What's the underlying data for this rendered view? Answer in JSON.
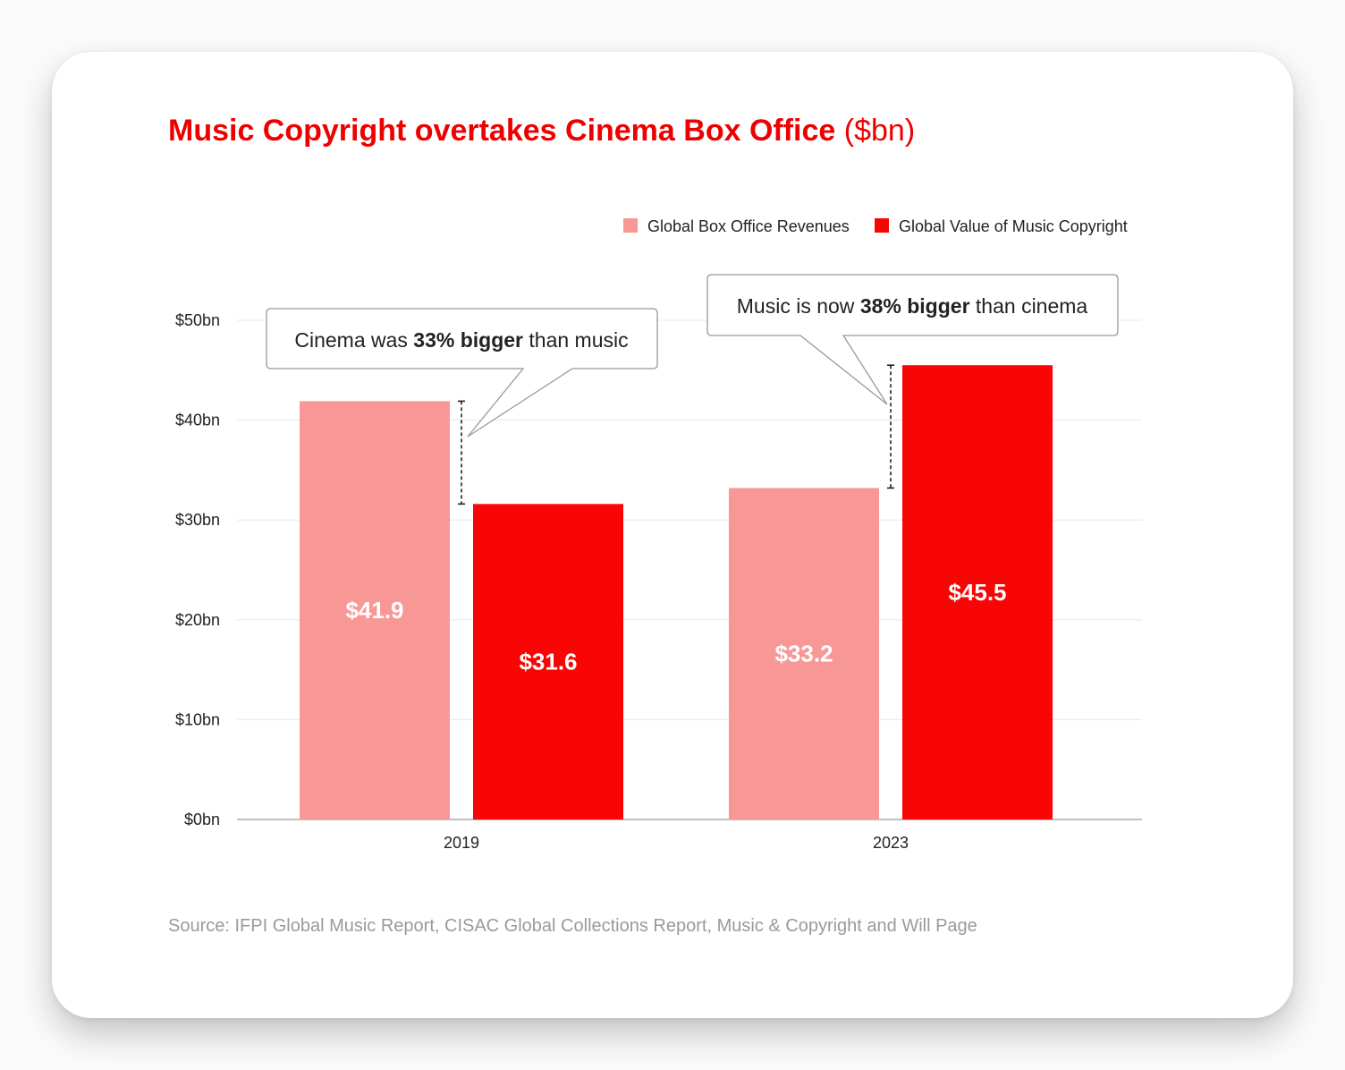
{
  "title": {
    "main": "Music Copyright overtakes Cinema Box Office",
    "unit": "($bn)"
  },
  "source": "Source: IFPI Global Music Report, CISAC Global Collections Report, Music & Copyright and Will Page",
  "colors": {
    "title": "#ee0000",
    "box_office": "#f89896",
    "music_copyright": "#fa0505",
    "grid": "#e8e8e8",
    "axis": "#999999"
  },
  "callouts": [
    {
      "prefix": "Cinema was ",
      "bold": "33% bigger",
      "suffix": " than music"
    },
    {
      "prefix": "Music is now ",
      "bold": "38% bigger",
      "suffix": " than cinema"
    }
  ],
  "chart_data": {
    "type": "bar",
    "categories": [
      "2019",
      "2023"
    ],
    "series": [
      {
        "name": "Global Box Office Revenues",
        "values": [
          41.9,
          33.2
        ],
        "labels": [
          "$41.9",
          "$33.2"
        ]
      },
      {
        "name": "Global Value of Music Copyright",
        "values": [
          31.6,
          45.5
        ],
        "labels": [
          "$31.6",
          "$45.5"
        ]
      }
    ],
    "yticks": [
      0,
      10,
      20,
      30,
      40,
      50
    ],
    "ytick_labels": [
      "$0bn",
      "$10bn",
      "$20bn",
      "$30bn",
      "$40bn",
      "$50bn"
    ],
    "ylim": [
      0,
      50
    ],
    "grid": true,
    "legend": "top-right"
  }
}
